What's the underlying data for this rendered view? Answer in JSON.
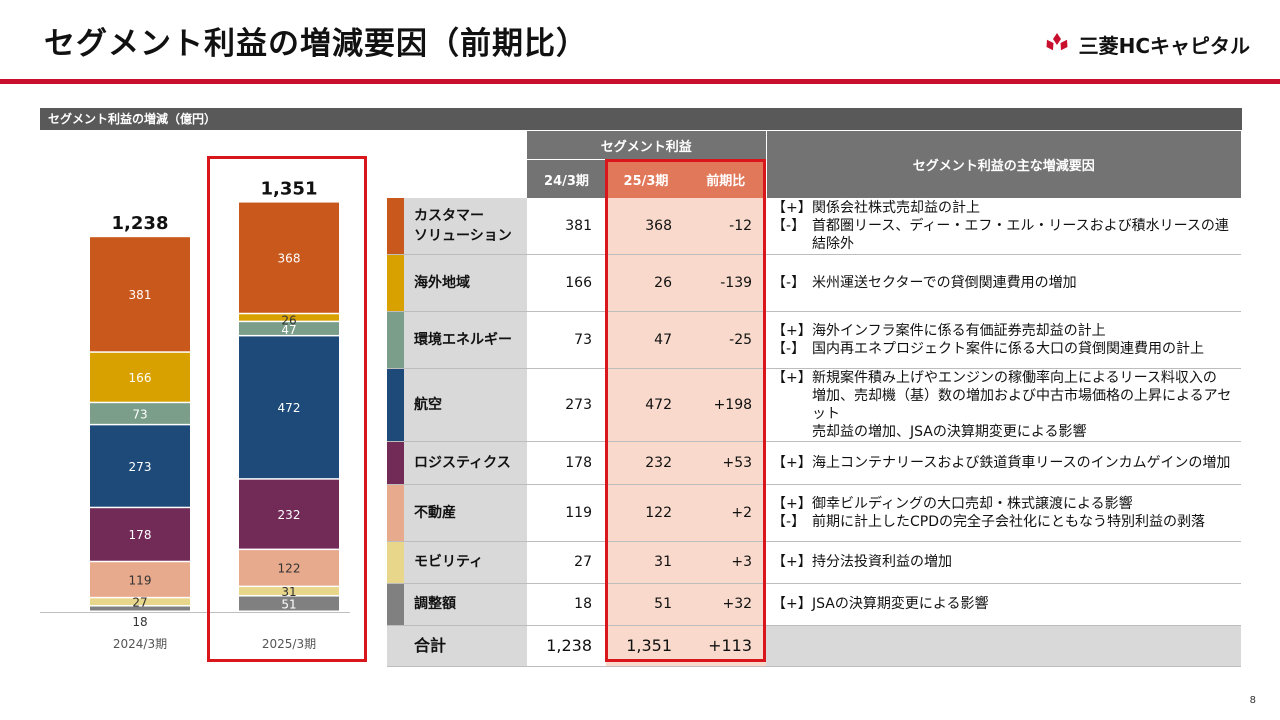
{
  "title": "セグメント利益の増減要因（前期比）",
  "brand": {
    "name": "三菱HCキャピタル",
    "logo_color": "#c8102e"
  },
  "section_label": "セグメント利益の増減（億円）",
  "page_number": "8",
  "table": {
    "group_header": "セグメント利益",
    "col_prev": "24/3期",
    "col_curr": "25/3期",
    "col_diff": "前期比",
    "factors_header": "セグメント利益の主な増減要因",
    "rows": [
      {
        "name_lines": [
          "カスタマー",
          "ソリューション"
        ],
        "color": "#c9581c",
        "prev": "381",
        "curr": "368",
        "diff": "-12",
        "factors": [
          {
            "sign": "【+】",
            "text": "関係会社株式売却益の計上"
          },
          {
            "sign": "【-】",
            "text": "首都圏リース、ディー・エフ・エル・リースおよび積水リースの連結除外"
          }
        ]
      },
      {
        "name_lines": [
          "海外地域"
        ],
        "color": "#d9a100",
        "prev": "166",
        "curr": "26",
        "diff": "-139",
        "factors": [
          {
            "sign": "【-】",
            "text": "米州運送セクターでの貸倒関連費用の増加"
          }
        ]
      },
      {
        "name_lines": [
          "環境エネルギー"
        ],
        "color": "#7a9e8a",
        "prev": "73",
        "curr": "47",
        "diff": "-25",
        "factors": [
          {
            "sign": "【+】",
            "text": "海外インフラ案件に係る有価証券売却益の計上"
          },
          {
            "sign": "【-】",
            "text": "国内再エネプロジェクト案件に係る大口の貸倒関連費用の計上"
          }
        ]
      },
      {
        "name_lines": [
          "航空"
        ],
        "color": "#1e4a7a",
        "prev": "273",
        "curr": "472",
        "diff": "+198",
        "factors": [
          {
            "sign": "【+】",
            "text": "新規案件積み上げやエンジンの稼働率向上によるリース料収入の"
          },
          {
            "sign": "",
            "text": "増加、売却機（基）数の増加および中古市場価格の上昇によるアセット"
          },
          {
            "sign": "",
            "text": "売却益の増加、JSAの決算期変更による影響"
          }
        ]
      },
      {
        "name_lines": [
          "ロジスティクス"
        ],
        "color": "#722a57",
        "prev": "178",
        "curr": "232",
        "diff": "+53",
        "factors": [
          {
            "sign": "【+】",
            "text": "海上コンテナリースおよび鉄道貨車リースのインカムゲインの増加"
          }
        ]
      },
      {
        "name_lines": [
          "不動産"
        ],
        "color": "#e8aa8c",
        "prev": "119",
        "curr": "122",
        "diff": "+2",
        "factors": [
          {
            "sign": "【+】",
            "text": "御幸ビルディングの大口売却・株式譲渡による影響"
          },
          {
            "sign": "【-】",
            "text": "前期に計上したCPDの完全子会社化にともなう特別利益の剥落"
          }
        ]
      },
      {
        "name_lines": [
          "モビリティ"
        ],
        "color": "#e8d68a",
        "prev": "27",
        "curr": "31",
        "diff": "+3",
        "factors": [
          {
            "sign": "【+】",
            "text": "持分法投資利益の増加"
          }
        ]
      },
      {
        "name_lines": [
          "調整額"
        ],
        "color": "#808080",
        "prev": "18",
        "curr": "51",
        "diff": "+32",
        "factors": [
          {
            "sign": "【+】",
            "text": "JSAの決算期変更による影響"
          }
        ]
      }
    ],
    "total": {
      "name": "合計",
      "prev": "1,238",
      "curr": "1,351",
      "diff": "+113"
    }
  },
  "chart_data": {
    "type": "bar",
    "stacked": true,
    "categories": [
      "2024/3期",
      "2025/3期"
    ],
    "totals": [
      1238,
      1351
    ],
    "total_labels": [
      "1,238",
      "1,351"
    ],
    "series": [
      {
        "name": "調整額",
        "color": "#808080",
        "values": [
          18,
          51
        ]
      },
      {
        "name": "モビリティ",
        "color": "#e8d68a",
        "values": [
          27,
          31
        ]
      },
      {
        "name": "不動産",
        "color": "#e8aa8c",
        "values": [
          119,
          122
        ]
      },
      {
        "name": "ロジスティクス",
        "color": "#722a57",
        "values": [
          178,
          232
        ]
      },
      {
        "name": "航空",
        "color": "#1e4a7a",
        "values": [
          273,
          472
        ]
      },
      {
        "name": "環境エネルギー",
        "color": "#7a9e8a",
        "values": [
          73,
          47
        ]
      },
      {
        "name": "海外地域",
        "color": "#d9a100",
        "values": [
          166,
          26
        ]
      },
      {
        "name": "カスタマーソリューション",
        "color": "#c9581c",
        "values": [
          381,
          368
        ]
      }
    ]
  }
}
